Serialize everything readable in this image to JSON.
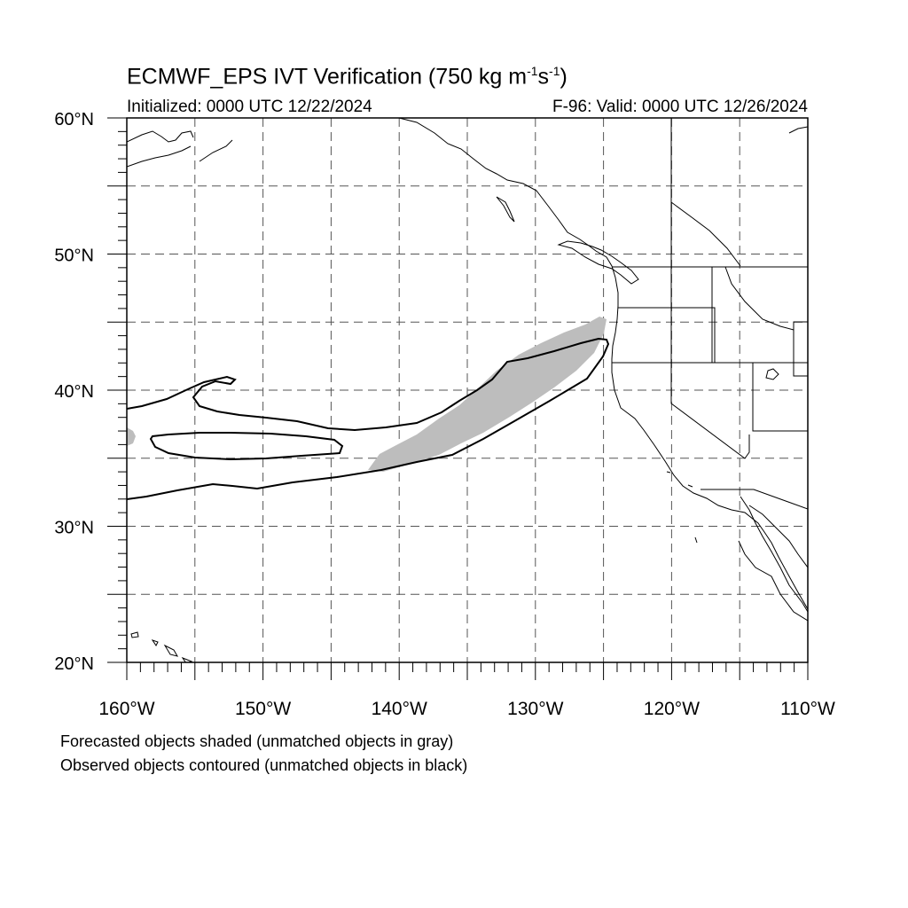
{
  "header": {
    "title_main": "ECMWF_EPS IVT Verification (750 kg m",
    "title_exp1": "-1",
    "title_mid": "s",
    "title_exp2": "-1",
    "title_end": ")",
    "initialized": "Initialized: 0000 UTC 12/22/2024",
    "valid": "F-96: Valid: 0000 UTC 12/26/2024"
  },
  "map": {
    "lon_range": [
      -160,
      -110
    ],
    "lat_range": [
      20,
      60
    ],
    "lat_labels": [
      {
        "lat": 60,
        "text": "60°N"
      },
      {
        "lat": 50,
        "text": "50°N"
      },
      {
        "lat": 40,
        "text": "40°N"
      },
      {
        "lat": 30,
        "text": "30°N"
      },
      {
        "lat": 20,
        "text": "20°N"
      }
    ],
    "lon_labels": [
      {
        "lon": -160,
        "text": "160°W"
      },
      {
        "lon": -150,
        "text": "150°W"
      },
      {
        "lon": -140,
        "text": "140°W"
      },
      {
        "lon": -130,
        "text": "130°W"
      },
      {
        "lon": -120,
        "text": "120°W"
      },
      {
        "lon": -110,
        "text": "110°W"
      }
    ],
    "grid_lon_step": 5,
    "grid_lat_step": 5,
    "colors": {
      "forecast_fill": "#bdbdbd",
      "observed_line": "#000000",
      "coast": "#000000",
      "grid": "#555555"
    }
  },
  "legend": {
    "line1": "Forecasted objects shaded (unmatched objects in gray)",
    "line2": "Observed objects contoured (unmatched objects in black)"
  }
}
